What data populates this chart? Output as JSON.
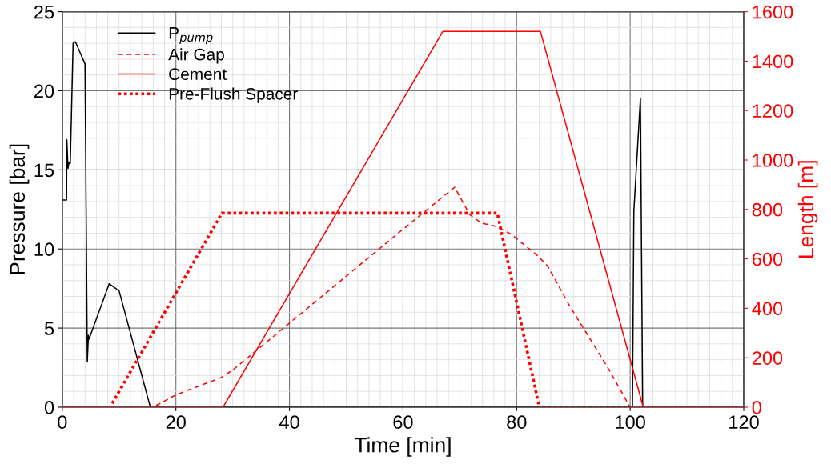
{
  "chart_data": {
    "type": "line",
    "xlabel": "Time [min]",
    "ylabel": "Pressure [bar]",
    "y2label": "Length [m]",
    "xlim": [
      0,
      120
    ],
    "xticks": [
      0,
      20,
      40,
      60,
      80,
      100,
      120
    ],
    "ylim": [
      0,
      25
    ],
    "yticks": [
      0,
      5,
      10,
      15,
      20,
      25
    ],
    "y2lim": [
      0,
      1600
    ],
    "y2ticks": [
      0,
      200,
      400,
      600,
      800,
      1000,
      1200,
      1400,
      1600
    ],
    "grid": true,
    "legend": "top left",
    "series": [
      {
        "name": "P$_{pump}$",
        "color": "#000000",
        "line_style": "solid",
        "x": [
          0,
          0.75,
          0.8,
          1.0,
          1.2,
          1.4,
          1.9,
          2.3,
          4.0,
          4.4,
          4.6,
          4.7,
          8.25,
          10.0,
          15.5,
          100.4,
          100.65,
          101.8,
          102.2,
          120
        ],
        "values": [
          13.1,
          13.1,
          16.9,
          15.1,
          15.5,
          15.4,
          23.0,
          23.1,
          21.7,
          2.85,
          4.55,
          4.3,
          7.8,
          7.35,
          0,
          0,
          12.4,
          19.5,
          0,
          0
        ]
      },
      {
        "name": "Air Gap",
        "color": "#ff0000",
        "axis": "y2",
        "line_style": "dashed",
        "x": [
          0,
          16,
          20,
          24,
          28,
          30,
          40,
          60,
          69.1,
          71.7,
          73.8,
          76.6,
          79.0,
          83.6,
          85.5,
          89.2,
          95.8,
          100.0,
          120
        ],
        "values": [
          0,
          0,
          50,
          85,
          120,
          150,
          340,
          720,
          890,
          780,
          745,
          730,
          700,
          615,
          570,
          415,
          170,
          0,
          0
        ]
      },
      {
        "name": "Cement",
        "color": "#ff0000",
        "axis": "y2",
        "line_style": "solid",
        "x": [
          0,
          28.3,
          67.0,
          84.2,
          102.3,
          120
        ],
        "values": [
          0,
          0,
          1520,
          1520,
          0,
          0
        ]
      },
      {
        "name": "Pre-Flush Spacer",
        "color": "#ff0000",
        "axis": "y2",
        "line_style": "dotted",
        "x": [
          0,
          8.4,
          28.1,
          76.6,
          84.0,
          120
        ],
        "values": [
          0,
          0,
          785,
          785,
          0,
          0
        ]
      }
    ]
  }
}
